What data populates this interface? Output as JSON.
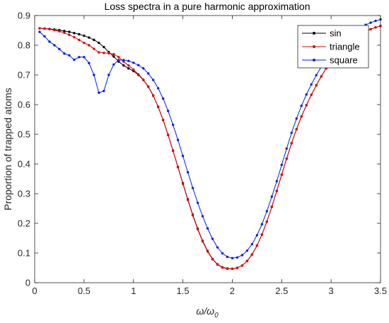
{
  "chart_data": {
    "type": "line",
    "title": "Loss spectra in a pure harmonic approximation",
    "xlabel_main": "ω/ω",
    "xlabel_sub": "0",
    "ylabel": "Proportion of trapped atoms",
    "xlim": [
      0,
      3.5
    ],
    "ylim": [
      0,
      0.9
    ],
    "xticks": [
      "0",
      "0.5",
      "1",
      "1.5",
      "2",
      "2.5",
      "3",
      "3.5"
    ],
    "yticks": [
      "0",
      "0.1",
      "0.2",
      "0.3",
      "0.4",
      "0.5",
      "0.6",
      "0.7",
      "0.8",
      "0.9"
    ],
    "grid": false,
    "legend_position": "top-right",
    "series": [
      {
        "name": "sin",
        "color": "#000000",
        "x": [
          0.05,
          0.1,
          0.15,
          0.2,
          0.25,
          0.3,
          0.35,
          0.4,
          0.45,
          0.5,
          0.55,
          0.6,
          0.65,
          0.7,
          0.75,
          0.8,
          0.85,
          0.9,
          0.95,
          1.0,
          1.05,
          1.1,
          1.15,
          1.2,
          1.25,
          1.3,
          1.35,
          1.4,
          1.45,
          1.5,
          1.55,
          1.6,
          1.65,
          1.7,
          1.75,
          1.8,
          1.85,
          1.9,
          1.95,
          2.0,
          2.05,
          2.1,
          2.15,
          2.2,
          2.25,
          2.3,
          2.35,
          2.4,
          2.45,
          2.5,
          2.55,
          2.6,
          2.65,
          2.7,
          2.75,
          2.8,
          2.85,
          2.9,
          2.95,
          3.0,
          3.05,
          3.1,
          3.15,
          3.2,
          3.25,
          3.3,
          3.35,
          3.4,
          3.45,
          3.5
        ],
        "y": [
          0.857,
          0.856,
          0.855,
          0.853,
          0.851,
          0.848,
          0.845,
          0.841,
          0.837,
          0.832,
          0.826,
          0.818,
          0.808,
          0.794,
          0.777,
          0.762,
          0.745,
          0.732,
          0.722,
          0.713,
          0.7,
          0.683,
          0.66,
          0.63,
          0.592,
          0.548,
          0.498,
          0.445,
          0.39,
          0.335,
          0.281,
          0.229,
          0.182,
          0.141,
          0.107,
          0.08,
          0.062,
          0.052,
          0.048,
          0.047,
          0.05,
          0.058,
          0.073,
          0.095,
          0.125,
          0.162,
          0.206,
          0.256,
          0.309,
          0.364,
          0.418,
          0.47,
          0.517,
          0.56,
          0.598,
          0.633,
          0.665,
          0.695,
          0.722,
          0.746,
          0.767,
          0.785,
          0.8,
          0.813,
          0.825,
          0.836,
          0.846,
          0.854,
          0.86,
          0.865
        ]
      },
      {
        "name": "triangle",
        "color": "#e00000",
        "x": [
          0.05,
          0.1,
          0.15,
          0.2,
          0.25,
          0.3,
          0.35,
          0.4,
          0.45,
          0.5,
          0.55,
          0.6,
          0.65,
          0.7,
          0.75,
          0.8,
          0.85,
          0.9,
          0.95,
          1.0,
          1.05,
          1.1,
          1.15,
          1.2,
          1.25,
          1.3,
          1.35,
          1.4,
          1.45,
          1.5,
          1.55,
          1.6,
          1.65,
          1.7,
          1.75,
          1.8,
          1.85,
          1.9,
          1.95,
          2.0,
          2.05,
          2.1,
          2.15,
          2.2,
          2.25,
          2.3,
          2.35,
          2.4,
          2.45,
          2.5,
          2.55,
          2.6,
          2.65,
          2.7,
          2.75,
          2.8,
          2.85,
          2.9,
          2.95,
          3.0,
          3.05,
          3.1,
          3.15,
          3.2,
          3.25,
          3.3,
          3.35,
          3.4,
          3.45,
          3.5
        ],
        "y": [
          0.857,
          0.856,
          0.854,
          0.851,
          0.847,
          0.842,
          0.835,
          0.827,
          0.818,
          0.808,
          0.8,
          0.788,
          0.776,
          0.774,
          0.773,
          0.77,
          0.76,
          0.745,
          0.732,
          0.718,
          0.702,
          0.684,
          0.661,
          0.631,
          0.593,
          0.548,
          0.498,
          0.444,
          0.389,
          0.333,
          0.279,
          0.227,
          0.18,
          0.139,
          0.105,
          0.079,
          0.061,
          0.051,
          0.047,
          0.047,
          0.05,
          0.058,
          0.073,
          0.095,
          0.125,
          0.162,
          0.206,
          0.256,
          0.309,
          0.364,
          0.418,
          0.47,
          0.517,
          0.56,
          0.598,
          0.633,
          0.665,
          0.695,
          0.722,
          0.746,
          0.767,
          0.785,
          0.8,
          0.813,
          0.825,
          0.836,
          0.846,
          0.854,
          0.86,
          0.865
        ]
      },
      {
        "name": "square",
        "color": "#0020e0",
        "x": [
          0.05,
          0.1,
          0.15,
          0.2,
          0.25,
          0.3,
          0.35,
          0.4,
          0.45,
          0.5,
          0.55,
          0.6,
          0.65,
          0.7,
          0.75,
          0.8,
          0.85,
          0.9,
          0.95,
          1.0,
          1.05,
          1.1,
          1.15,
          1.2,
          1.25,
          1.3,
          1.35,
          1.4,
          1.45,
          1.5,
          1.55,
          1.6,
          1.65,
          1.7,
          1.75,
          1.8,
          1.85,
          1.9,
          1.95,
          2.0,
          2.05,
          2.1,
          2.15,
          2.2,
          2.25,
          2.3,
          2.35,
          2.4,
          2.45,
          2.5,
          2.55,
          2.6,
          2.65,
          2.7,
          2.75,
          2.8,
          2.85,
          2.9,
          2.95,
          3.0,
          3.05,
          3.1,
          3.15,
          3.2,
          3.25,
          3.3,
          3.35,
          3.4,
          3.45,
          3.5
        ],
        "y": [
          0.845,
          0.83,
          0.812,
          0.8,
          0.787,
          0.772,
          0.766,
          0.751,
          0.76,
          0.76,
          0.74,
          0.7,
          0.64,
          0.646,
          0.7,
          0.735,
          0.75,
          0.75,
          0.747,
          0.741,
          0.733,
          0.722,
          0.705,
          0.683,
          0.655,
          0.62,
          0.579,
          0.532,
          0.481,
          0.427,
          0.372,
          0.319,
          0.269,
          0.224,
          0.183,
          0.148,
          0.119,
          0.099,
          0.087,
          0.083,
          0.085,
          0.093,
          0.108,
          0.13,
          0.16,
          0.197,
          0.241,
          0.29,
          0.342,
          0.397,
          0.452,
          0.505,
          0.553,
          0.596,
          0.634,
          0.668,
          0.699,
          0.727,
          0.752,
          0.775,
          0.795,
          0.812,
          0.827,
          0.84,
          0.851,
          0.861,
          0.869,
          0.876,
          0.882,
          0.887
        ]
      }
    ]
  }
}
